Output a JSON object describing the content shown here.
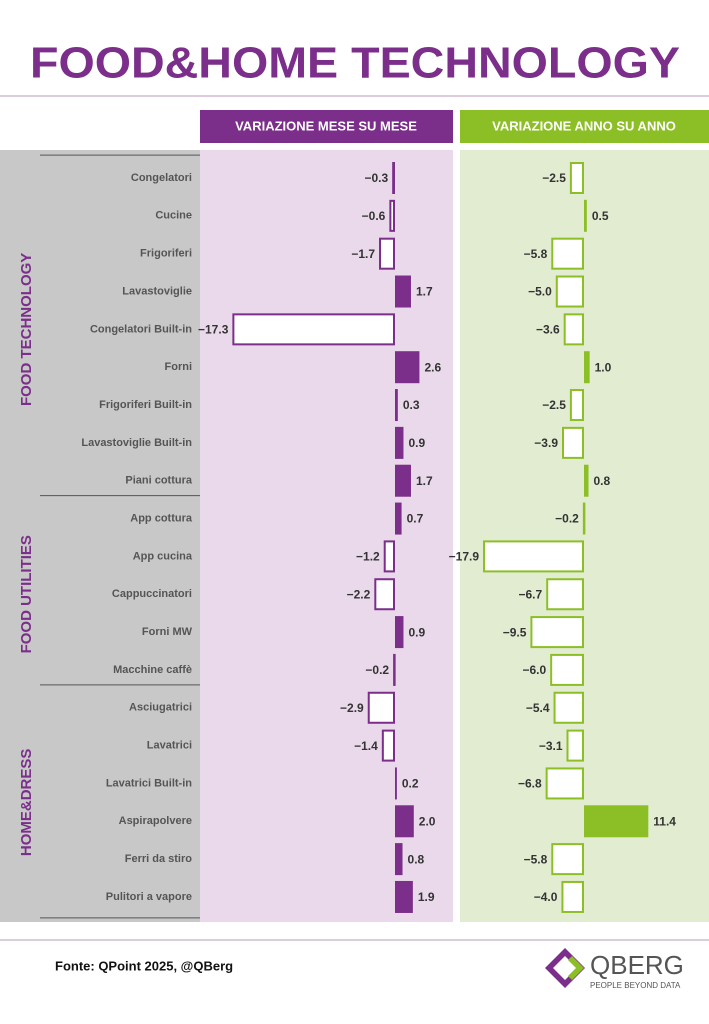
{
  "chart_data": {
    "type": "bar",
    "title": "FOOD&HOME TECHNOLOGY",
    "groups": [
      {
        "name": "FOOD TECHNOLOGY",
        "categories": [
          "Congelatori",
          "Cucine",
          "Frigoriferi",
          "Lavastoviglie",
          "Congelatori Built-in",
          "Forni",
          "Frigoriferi Built-in",
          "Lavastoviglie Built-in",
          "Piani cottura"
        ]
      },
      {
        "name": "FOOD UTILITIES",
        "categories": [
          "App cottura",
          "App cucina",
          "Cappuccinatori",
          "Forni MW",
          "Macchine caffè"
        ]
      },
      {
        "name": "HOME&DRESS",
        "categories": [
          "Asciugatrici",
          "Lavatrici",
          "Lavatrici Built-in",
          "Aspirapolvere",
          "Ferri da stiro",
          "Pulitori a vapore"
        ]
      }
    ],
    "series": [
      {
        "name": "VARIAZIONE MESE SU MESE",
        "color": "#7b2e8a",
        "values": [
          -0.3,
          -0.6,
          -1.7,
          1.7,
          -17.3,
          2.6,
          0.3,
          0.9,
          1.7,
          0.7,
          -1.2,
          -2.2,
          0.9,
          -0.2,
          -2.9,
          -1.4,
          0.2,
          2.0,
          0.8,
          1.9
        ],
        "value_labels": [
          "−0.3",
          "−0.6",
          "−1.7",
          "1.7",
          "−17.3",
          "2.6",
          "0.3",
          "0.9",
          "1.7",
          "0.7",
          "−1.2",
          "−2.2",
          "0.9",
          "−0.2",
          "−2.9",
          "−1.4",
          "0.2",
          "2.0",
          "0.8",
          "1.9"
        ]
      },
      {
        "name": "VARIAZIONE ANNO SU ANNO",
        "color": "#8cbf26",
        "values": [
          -2.5,
          0.5,
          -5.8,
          -5.0,
          -3.6,
          1.0,
          -2.5,
          -3.9,
          0.8,
          -0.2,
          -17.9,
          -6.7,
          -9.5,
          -6.0,
          -5.4,
          -3.1,
          -6.8,
          11.4,
          -5.8,
          -4.0
        ],
        "value_labels": [
          "−2.5",
          "0.5",
          "−5.8",
          "−5.0",
          "−3.6",
          "1.0",
          "−2.5",
          "−3.9",
          "0.8",
          "−0.2",
          "−17.9",
          "−6.7",
          "−9.5",
          "−6.0",
          "−5.4",
          "−3.1",
          "−6.8",
          "11.4",
          "−5.8",
          "−4.0"
        ]
      }
    ],
    "source": "Fonte: QPoint 2025, @QBerg"
  },
  "logo": {
    "name": "QBERG",
    "tagline": "PEOPLE BEYOND DATA"
  }
}
